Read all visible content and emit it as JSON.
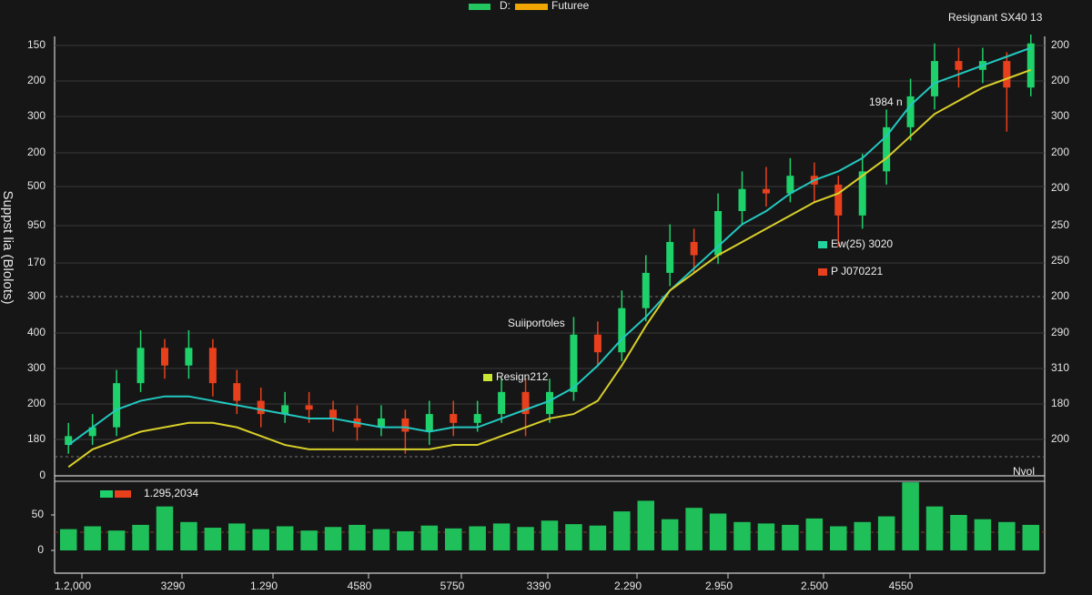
{
  "chart_data": {
    "type": "candlestick",
    "y_title": "Suppst lia (Blolots)",
    "legend": [
      {
        "name": "D:",
        "color": "#22c55e"
      },
      {
        "name": "Futuree",
        "color": "#f0a500"
      }
    ],
    "left_labels": [
      150,
      200,
      300,
      200,
      500,
      950,
      170,
      300,
      400,
      300,
      200,
      180,
      0
    ],
    "right_labels": [
      200,
      200,
      300,
      200,
      200,
      250,
      250,
      200,
      290,
      310,
      180,
      200
    ],
    "x_labels": [
      "1.2,000",
      "3290",
      "1.290",
      "4580",
      "5750",
      "3390",
      "2.290",
      "2.950",
      "2.500",
      "4550"
    ],
    "ylim": [
      0,
      100
    ],
    "up_color": "#1fd16a",
    "down_color": "#e8401c",
    "ohlc": [
      [
        7,
        12,
        5,
        9
      ],
      [
        9,
        14,
        7,
        11
      ],
      [
        11,
        24,
        9,
        21
      ],
      [
        21,
        33,
        19,
        29
      ],
      [
        29,
        31,
        22,
        25
      ],
      [
        25,
        33,
        22,
        29
      ],
      [
        29,
        31,
        18,
        21
      ],
      [
        21,
        24,
        14,
        17
      ],
      [
        17,
        20,
        11,
        14
      ],
      [
        14,
        19,
        12,
        16
      ],
      [
        16,
        19,
        12,
        15
      ],
      [
        15,
        17,
        10,
        13
      ],
      [
        13,
        16,
        8,
        11
      ],
      [
        11,
        16,
        9,
        13
      ],
      [
        13,
        15,
        5,
        10
      ],
      [
        10,
        17,
        7,
        14
      ],
      [
        14,
        17,
        9,
        12
      ],
      [
        12,
        17,
        10,
        14
      ],
      [
        14,
        22,
        12,
        19
      ],
      [
        19,
        22,
        9,
        14
      ],
      [
        14,
        22,
        12,
        19
      ],
      [
        19,
        36,
        17,
        32
      ],
      [
        32,
        35,
        25,
        28
      ],
      [
        28,
        42,
        26,
        38
      ],
      [
        38,
        50,
        35,
        46
      ],
      [
        46,
        57,
        43,
        53
      ],
      [
        53,
        56,
        46,
        50
      ],
      [
        50,
        64,
        48,
        60
      ],
      [
        60,
        69,
        57,
        65
      ],
      [
        65,
        70,
        61,
        64
      ],
      [
        64,
        72,
        62,
        68
      ],
      [
        68,
        71,
        62,
        66
      ],
      [
        66,
        68,
        52,
        59
      ],
      [
        59,
        73,
        56,
        69
      ],
      [
        69,
        83,
        66,
        79
      ],
      [
        79,
        90,
        76,
        86
      ],
      [
        86,
        98,
        83,
        94
      ],
      [
        94,
        97,
        88,
        92
      ],
      [
        92,
        97,
        89,
        94
      ],
      [
        94,
        96,
        78,
        88
      ],
      [
        88,
        100,
        86,
        98
      ]
    ],
    "lines": [
      {
        "color": "#22c8c0",
        "values": [
          7,
          11,
          15,
          17,
          18,
          18,
          17,
          16,
          15,
          14,
          13,
          13,
          12,
          11,
          11,
          10,
          11,
          11,
          13,
          15,
          17,
          20,
          25,
          31,
          36,
          42,
          47,
          52,
          57,
          60,
          64,
          67,
          69,
          72,
          77,
          84,
          89,
          91,
          93,
          95,
          97
        ]
      },
      {
        "color": "#d8cf2a",
        "values": [
          2,
          6,
          8,
          10,
          11,
          12,
          12,
          11,
          9,
          7,
          6,
          6,
          6,
          6,
          6,
          6,
          7,
          7,
          9,
          11,
          13,
          14,
          17,
          25,
          34,
          42,
          46,
          50,
          53,
          56,
          59,
          62,
          64,
          68,
          72,
          77,
          82,
          85,
          88,
          90,
          92
        ]
      }
    ],
    "volume": {
      "color": "#1fbf5a",
      "ylim": [
        0,
        105
      ],
      "yticks": [
        0,
        50
      ],
      "values": [
        30,
        34,
        28,
        36,
        62,
        40,
        32,
        38,
        30,
        34,
        28,
        33,
        36,
        30,
        27,
        35,
        31,
        34,
        38,
        33,
        42,
        37,
        35,
        55,
        70,
        44,
        60,
        52,
        40,
        38,
        36,
        45,
        34,
        40,
        48,
        96,
        62,
        50,
        44,
        40,
        36
      ]
    },
    "annotations": [
      {
        "text": "Resignant SX40 13"
      },
      {
        "text": "1984 n"
      },
      {
        "text": "Ew(25) 3020",
        "color": "#22d3a0"
      },
      {
        "text": "P J070221",
        "color": "#e8401c"
      },
      {
        "text": "Suiiportoles"
      },
      {
        "text": "Resign212",
        "color": "#c8e632"
      },
      {
        "text": "1.295,2034",
        "color": "#1fd16a"
      },
      {
        "text": "Nvol"
      }
    ]
  }
}
